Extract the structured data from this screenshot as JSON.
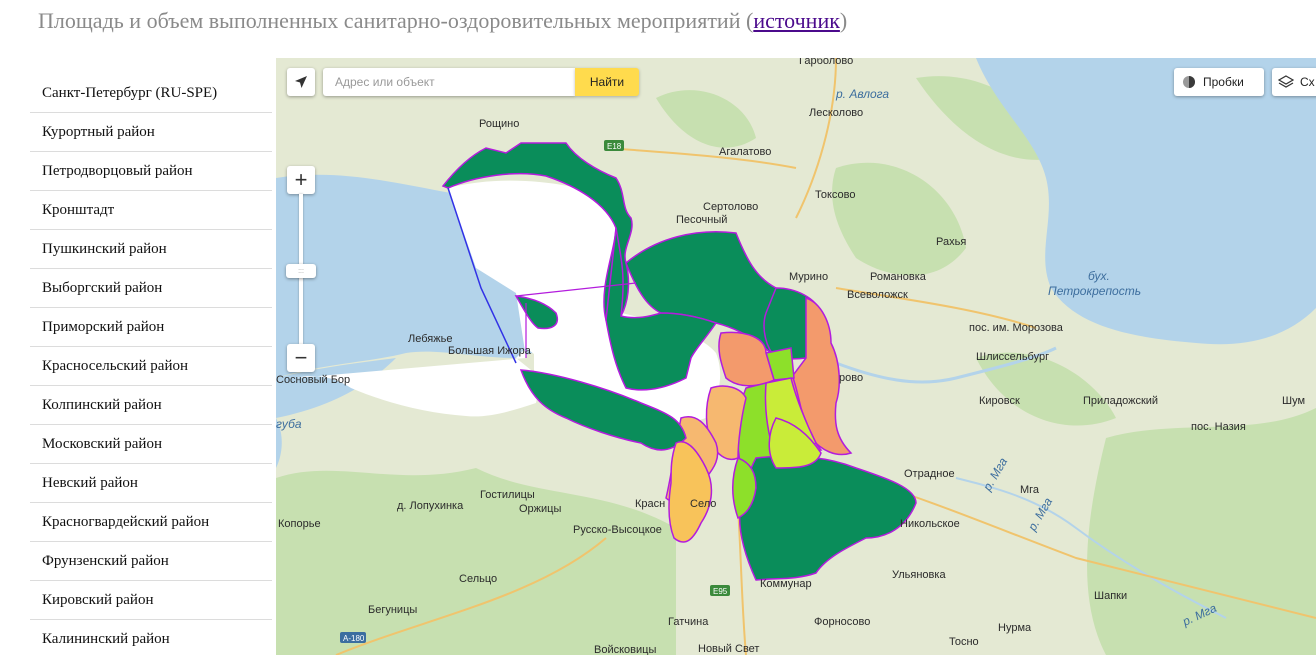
{
  "header": {
    "title": "Площадь и объем выполненных санитарно-оздоровительных мероприятий",
    "paren_open": " (",
    "source_link": "источник",
    "paren_close": ")"
  },
  "sidebar": {
    "items": [
      {
        "label": "Санкт-Петербург (RU-SPE)"
      },
      {
        "label": "Курортный район"
      },
      {
        "label": "Петродворцовый район"
      },
      {
        "label": "Кронштадт"
      },
      {
        "label": "Пушкинский район"
      },
      {
        "label": "Выборгский район"
      },
      {
        "label": "Приморский район"
      },
      {
        "label": "Красносельский район"
      },
      {
        "label": "Колпинский район"
      },
      {
        "label": "Московский район"
      },
      {
        "label": "Невский район"
      },
      {
        "label": "Красногвардейский район"
      },
      {
        "label": "Фрунзенский район"
      },
      {
        "label": "Кировский район"
      },
      {
        "label": "Калининский район"
      }
    ]
  },
  "map": {
    "search_placeholder": "Адрес или объект",
    "search_button": "Найти",
    "traffic_label": "Пробки",
    "layers_label": "Сх",
    "zoom_plus": "+",
    "zoom_minus": "−",
    "zoom_handle": ":::",
    "icons": {
      "locate": "locate-arrow-icon",
      "traffic": "traffic-light-icon",
      "layers": "layers-icon"
    },
    "colors": {
      "land": "#e4e9d3",
      "water": "#b3d3ea",
      "forest": "#c7e0b0",
      "city_mask": "#ffffff",
      "dark_green": "#0a8d5a",
      "salmon": "#f39a6c",
      "light_orange": "#f6b870",
      "yellow_orange": "#f8c35a",
      "lime": "#8de02a",
      "yellow_green": "#c9ec39",
      "boundary": "#b31cdd",
      "boundary_blue": "#3232e6"
    },
    "labels": {
      "tarkholovo": "Гарболово",
      "r_avloga": "р. Авлога",
      "roshchino": "Рощино",
      "leskolovo": "Лесколово",
      "e18": "E18",
      "agalatovo": "Агалатово",
      "toksovo": "Токсово",
      "sertolovo": "Сертолово",
      "pesochny": "Песочный",
      "rakhya": "Рахья",
      "murino": "Мурино",
      "romanovka": "Романовка",
      "vsevolozhsk": "Всеволожск",
      "bukh": "бух.",
      "petrokrepost": "Петрокрепость",
      "lebyazhye": "Лебяжье",
      "bolshaya_izhora": "Большая Ижора",
      "morozova": "пос. им. Морозова",
      "shlisselburg": "Шлиссельбург",
      "sosnovy_bor": "Сосновый Бор",
      "kudrovo": "рово",
      "kirovsk": "Кировск",
      "prilazhsky": "Приладожский",
      "shum": "Шум",
      "guba": "губа",
      "nazia": "пос. Назия",
      "otradnoe": "Отрадное",
      "r_mga1": "р. Мга",
      "mga": "Мга",
      "r_mga2": "р. Мга",
      "lopukhinka": "д. Лопухинка",
      "gostilitsy": "Гостилицы",
      "orzhitsy": "Оржицы",
      "krasnoe_selo_a": "Красн",
      "krasnoe_selo_b": "Село",
      "koporye": "Копорье",
      "russko_vysotskoe": "Русско-Высоцкое",
      "nikolskoe": "Никольское",
      "ulyanovka": "Ульяновка",
      "selco": "Сельцо",
      "kommunar": "Коммунар",
      "e95": "E95",
      "shapki": "Шапки",
      "r_mga3": "р. Мга",
      "begunitsy": "Бегуницы",
      "fornosovo": "Форносово",
      "a180": "А-180",
      "gatchina": "Гатчина",
      "tosno": "Тосно",
      "nurma": "Нурма",
      "voyskovitsy": "Войсковицы",
      "novy_svet": "Новый Свет"
    }
  }
}
